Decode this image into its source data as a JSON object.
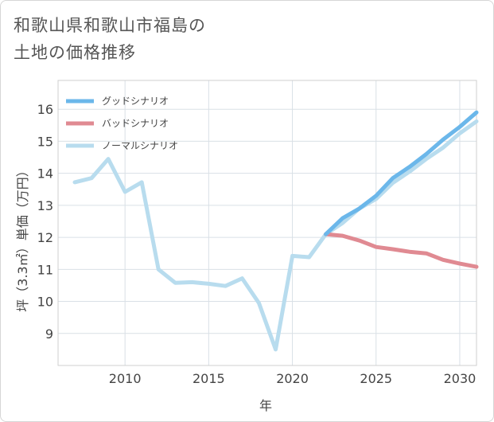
{
  "title_line1": "和歌山県和歌山市福島の",
  "title_line2": "土地の価格推移",
  "chart_data": {
    "type": "line",
    "title": "和歌山県和歌山市福島の土地の価格推移",
    "xlabel": "年",
    "ylabel": "坪（3.3㎡）単価（万円）",
    "xlim": [
      2006,
      2031
    ],
    "ylim": [
      8,
      16.9
    ],
    "x_ticks": [
      2010,
      2015,
      2020,
      2025,
      2030
    ],
    "y_ticks": [
      9,
      10,
      11,
      12,
      13,
      14,
      15,
      16
    ],
    "grid": true,
    "legend_position": "top-left",
    "series": [
      {
        "name": "グッドシナリオ",
        "color": "#6bb7ea",
        "x": [
          2022,
          2023,
          2024,
          2025,
          2026,
          2027,
          2028,
          2029,
          2030,
          2031
        ],
        "y": [
          12.1,
          12.6,
          12.9,
          13.3,
          13.85,
          14.2,
          14.6,
          15.05,
          15.45,
          15.9
        ]
      },
      {
        "name": "バッドシナリオ",
        "color": "#e08a92",
        "x": [
          2022,
          2023,
          2024,
          2025,
          2026,
          2027,
          2028,
          2029,
          2030,
          2031
        ],
        "y": [
          12.1,
          12.05,
          11.9,
          11.7,
          11.63,
          11.55,
          11.5,
          11.3,
          11.18,
          11.08
        ]
      },
      {
        "name": "ノーマルシナリオ",
        "color": "#b8dcee",
        "x": [
          2007,
          2008,
          2009,
          2010,
          2011,
          2012,
          2013,
          2014,
          2015,
          2016,
          2017,
          2018,
          2019,
          2020,
          2021,
          2022,
          2023,
          2024,
          2025,
          2026,
          2027,
          2028,
          2029,
          2030,
          2031
        ],
        "y": [
          13.72,
          13.85,
          14.45,
          13.42,
          13.72,
          11.0,
          10.58,
          10.6,
          10.55,
          10.48,
          10.72,
          9.95,
          8.5,
          11.42,
          11.38,
          12.1,
          12.45,
          12.9,
          13.2,
          13.7,
          14.05,
          14.45,
          14.8,
          15.25,
          15.62
        ]
      }
    ]
  }
}
